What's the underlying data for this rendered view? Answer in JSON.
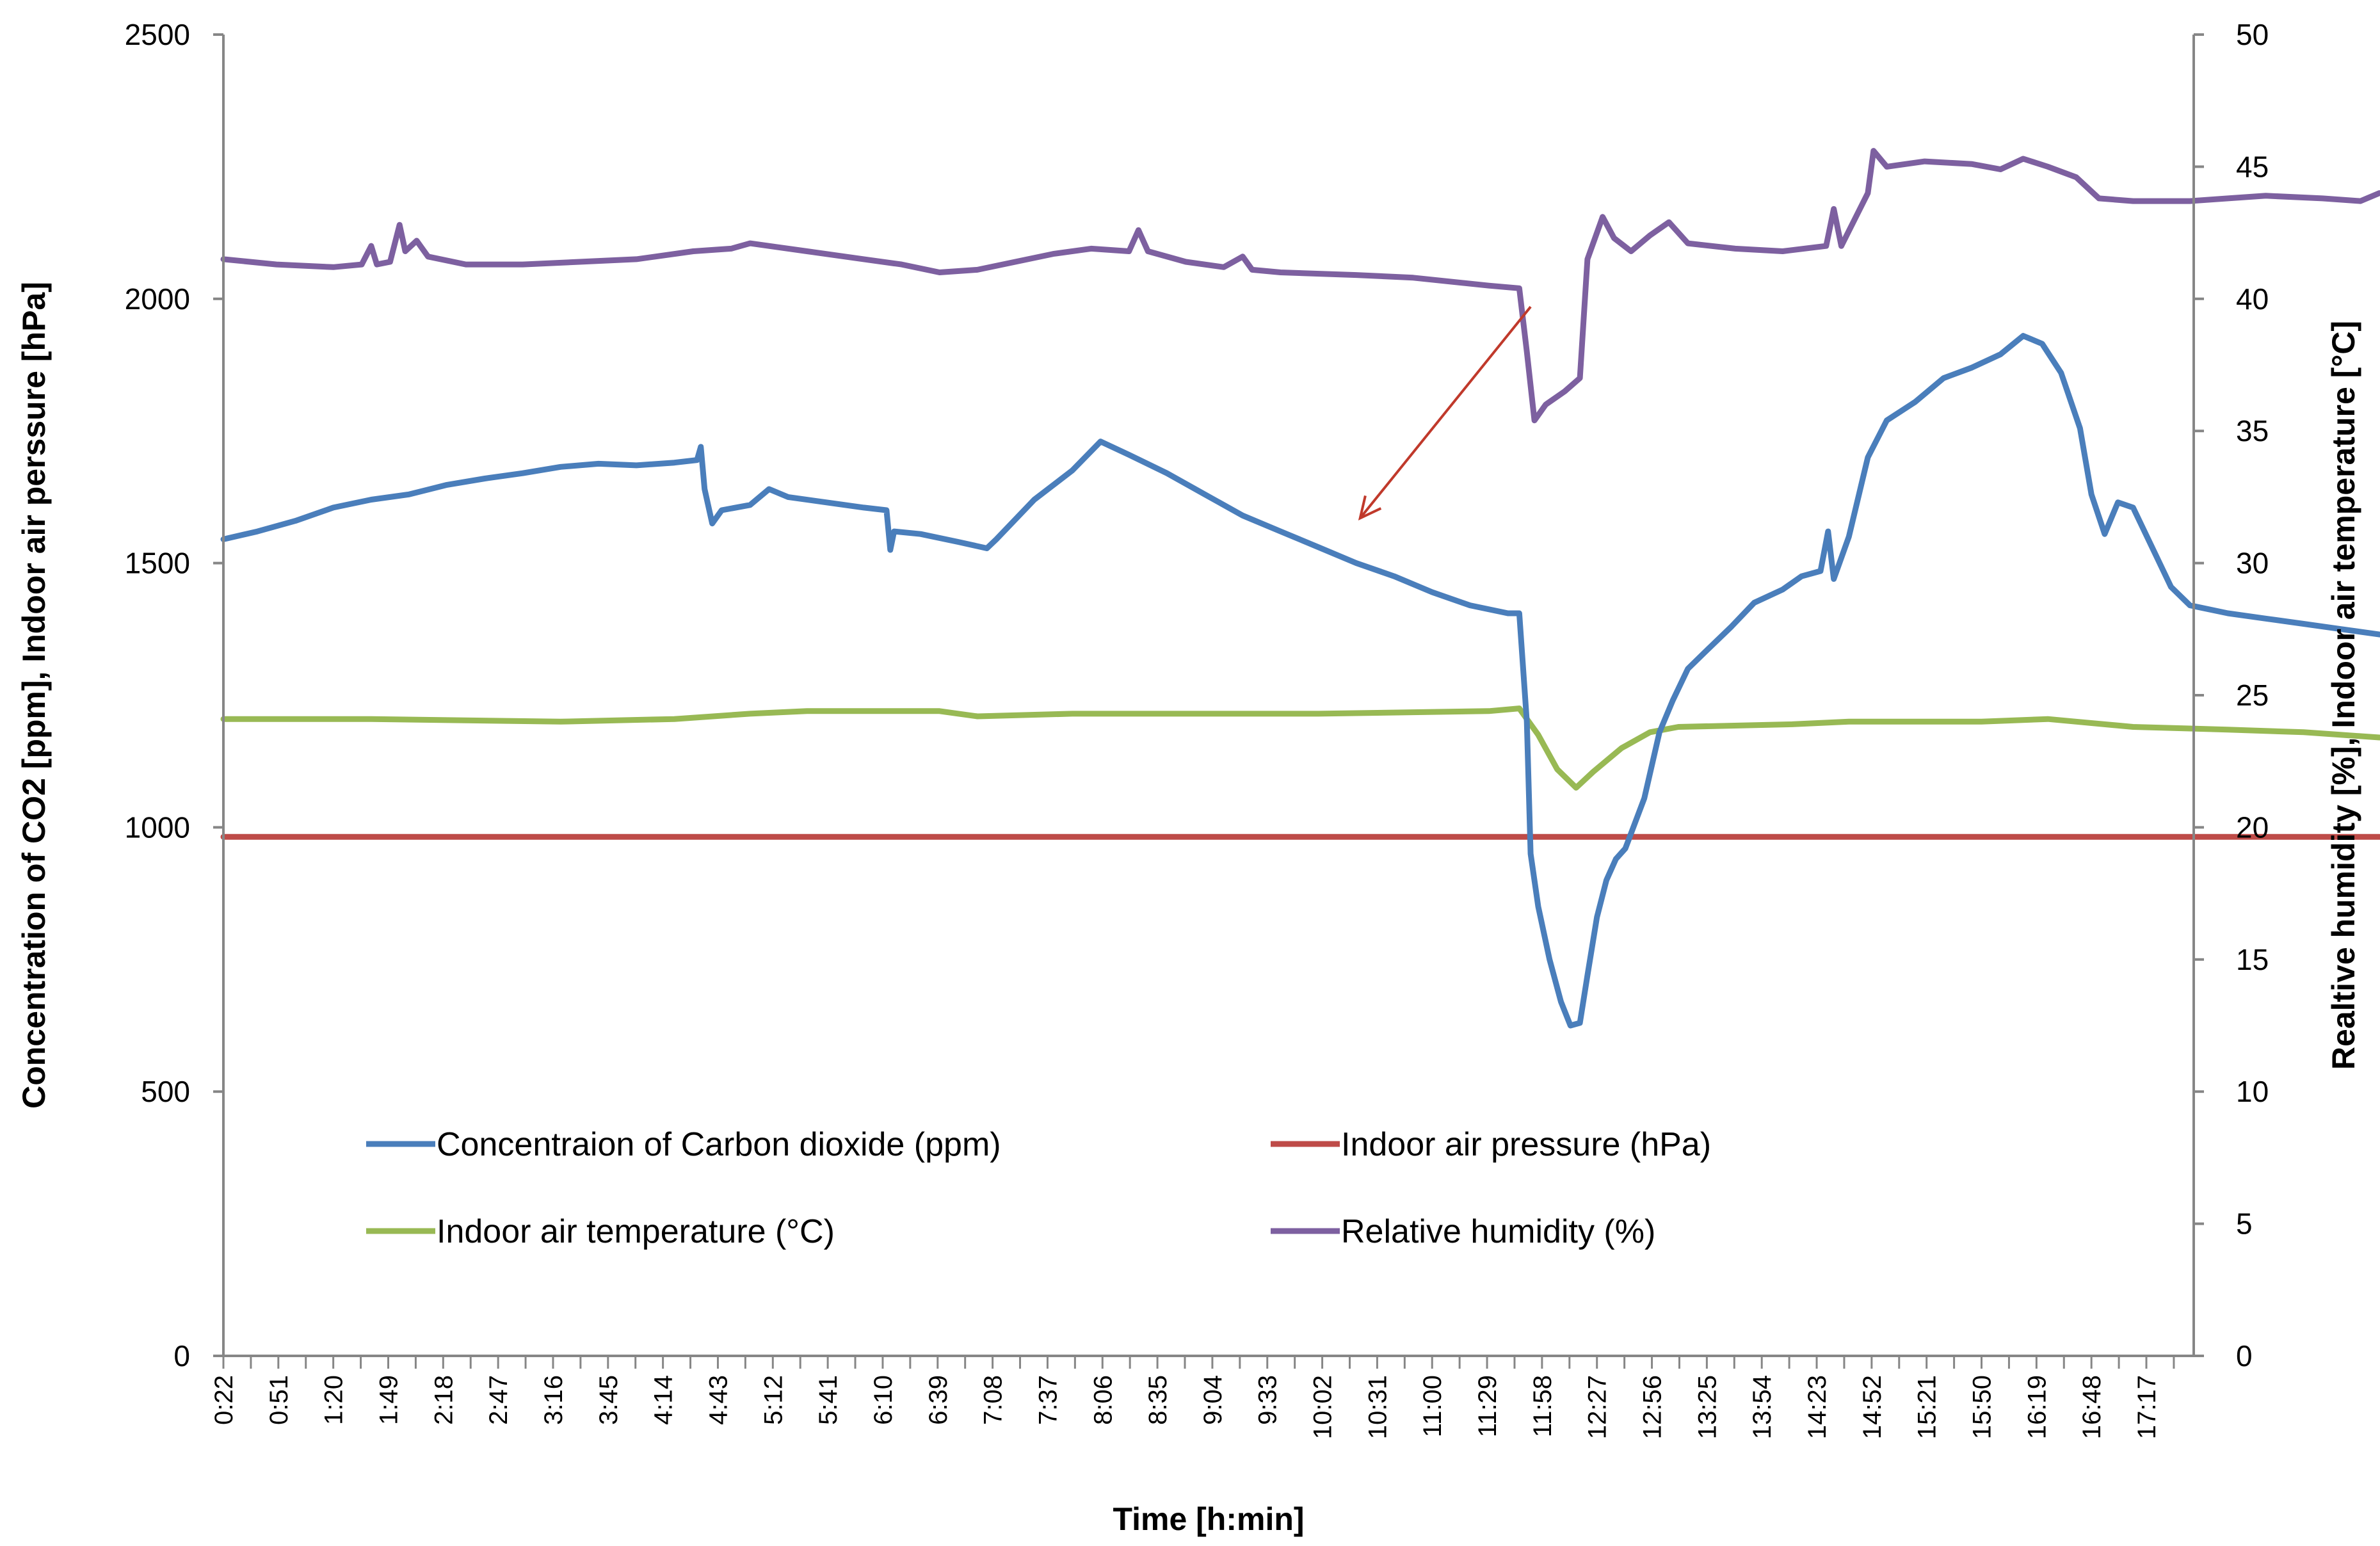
{
  "chart_data": {
    "type": "line",
    "title": "",
    "xlabel": "Time [h:min]",
    "ylabel_left": "Concentration of CO2 [ppm], Indoor air perssure  [hPa]",
    "ylabel_right": "Realtive humidity [%], Indoor air temperature [°C]",
    "ylim_left": [
      0,
      2500
    ],
    "ylim_right": [
      0,
      50
    ],
    "yticks_left": [
      "0",
      "500",
      "1000",
      "1500",
      "2000",
      "2500"
    ],
    "yticks_right": [
      "0",
      "5",
      "10",
      "15",
      "20",
      "25",
      "30",
      "35",
      "40",
      "45",
      "50"
    ],
    "x_tick_labels": [
      "0:22",
      "0:51",
      "1:20",
      "1:49",
      "2:18",
      "2:47",
      "3:16",
      "3:45",
      "4:14",
      "4:43",
      "5:12",
      "5:41",
      "6:10",
      "6:39",
      "7:08",
      "7:37",
      "8:06",
      "8:35",
      "9:04",
      "9:33",
      "10:02",
      "10:31",
      "11:00",
      "11:29",
      "11:58",
      "12:27",
      "12:56",
      "13:25",
      "13:54",
      "14:23",
      "14:52",
      "15:21",
      "15:50",
      "16:19",
      "16:48",
      "17:17"
    ],
    "x_range_minutes": [
      22,
      1062
    ],
    "grid": false,
    "legend_placement": "lower-center",
    "series": [
      {
        "name": "Concentraion of Carbon dioxide (ppm)",
        "axis": "left",
        "color": "#4a7ebb",
        "points": [
          [
            22,
            1545
          ],
          [
            40,
            1560
          ],
          [
            60,
            1580
          ],
          [
            80,
            1605
          ],
          [
            100,
            1620
          ],
          [
            120,
            1630
          ],
          [
            140,
            1648
          ],
          [
            160,
            1660
          ],
          [
            180,
            1670
          ],
          [
            200,
            1682
          ],
          [
            220,
            1688
          ],
          [
            240,
            1685
          ],
          [
            260,
            1690
          ],
          [
            272,
            1695
          ],
          [
            274,
            1720
          ],
          [
            276,
            1640
          ],
          [
            280,
            1575
          ],
          [
            285,
            1600
          ],
          [
            300,
            1610
          ],
          [
            310,
            1640
          ],
          [
            320,
            1625
          ],
          [
            340,
            1615
          ],
          [
            360,
            1605
          ],
          [
            372,
            1600
          ],
          [
            374,
            1525
          ],
          [
            376,
            1560
          ],
          [
            390,
            1555
          ],
          [
            410,
            1540
          ],
          [
            425,
            1528
          ],
          [
            430,
            1545
          ],
          [
            450,
            1620
          ],
          [
            470,
            1675
          ],
          [
            485,
            1730
          ],
          [
            500,
            1705
          ],
          [
            520,
            1670
          ],
          [
            540,
            1630
          ],
          [
            560,
            1590
          ],
          [
            580,
            1560
          ],
          [
            600,
            1530
          ],
          [
            620,
            1500
          ],
          [
            640,
            1475
          ],
          [
            660,
            1445
          ],
          [
            680,
            1420
          ],
          [
            700,
            1405
          ],
          [
            706,
            1405
          ],
          [
            710,
            1200
          ],
          [
            712,
            950
          ],
          [
            716,
            850
          ],
          [
            722,
            750
          ],
          [
            728,
            670
          ],
          [
            733,
            625
          ],
          [
            738,
            630
          ],
          [
            742,
            720
          ],
          [
            747,
            830
          ],
          [
            752,
            900
          ],
          [
            757,
            940
          ],
          [
            762,
            960
          ],
          [
            772,
            1055
          ],
          [
            780,
            1180
          ],
          [
            787,
            1240
          ],
          [
            795,
            1300
          ],
          [
            805,
            1335
          ],
          [
            818,
            1380
          ],
          [
            830,
            1425
          ],
          [
            845,
            1450
          ],
          [
            855,
            1475
          ],
          [
            865,
            1485
          ],
          [
            869,
            1560
          ],
          [
            872,
            1470
          ],
          [
            880,
            1550
          ],
          [
            890,
            1700
          ],
          [
            900,
            1770
          ],
          [
            915,
            1805
          ],
          [
            930,
            1850
          ],
          [
            945,
            1870
          ],
          [
            960,
            1895
          ],
          [
            972,
            1930
          ],
          [
            982,
            1915
          ],
          [
            992,
            1860
          ],
          [
            1002,
            1755
          ],
          [
            1008,
            1630
          ],
          [
            1015,
            1555
          ],
          [
            1022,
            1615
          ],
          [
            1030,
            1605
          ],
          [
            1040,
            1530
          ],
          [
            1050,
            1455
          ],
          [
            1060,
            1420
          ],
          [
            1080,
            1405
          ],
          [
            1100,
            1395
          ],
          [
            1120,
            1385
          ],
          [
            1140,
            1375
          ],
          [
            1160,
            1365
          ]
        ]
      },
      {
        "name": "Indoor air pressure (hPa)",
        "axis": "left",
        "color": "#be4b48",
        "points": [
          [
            22,
            982
          ],
          [
            1160,
            982
          ]
        ]
      },
      {
        "name": "Indoor air temperature (°C)",
        "axis": "right",
        "color": "#98b954",
        "points": [
          [
            22,
            24.1
          ],
          [
            100,
            24.1
          ],
          [
            200,
            24.0
          ],
          [
            260,
            24.1
          ],
          [
            300,
            24.3
          ],
          [
            330,
            24.4
          ],
          [
            400,
            24.4
          ],
          [
            420,
            24.2
          ],
          [
            470,
            24.3
          ],
          [
            600,
            24.3
          ],
          [
            690,
            24.4
          ],
          [
            706,
            24.5
          ],
          [
            716,
            23.5
          ],
          [
            726,
            22.2
          ],
          [
            736,
            21.5
          ],
          [
            745,
            22.1
          ],
          [
            760,
            23.0
          ],
          [
            775,
            23.6
          ],
          [
            790,
            23.8
          ],
          [
            850,
            23.9
          ],
          [
            880,
            24.0
          ],
          [
            950,
            24.0
          ],
          [
            985,
            24.1
          ],
          [
            1000,
            24.0
          ],
          [
            1030,
            23.8
          ],
          [
            1080,
            23.7
          ],
          [
            1120,
            23.6
          ],
          [
            1160,
            23.4
          ]
        ]
      },
      {
        "name": "Relative humidity (%)",
        "axis": "right",
        "color": "#7d60a0",
        "points": [
          [
            22,
            41.5
          ],
          [
            50,
            41.3
          ],
          [
            80,
            41.2
          ],
          [
            95,
            41.3
          ],
          [
            100,
            42.0
          ],
          [
            103,
            41.3
          ],
          [
            110,
            41.4
          ],
          [
            115,
            42.8
          ],
          [
            118,
            41.8
          ],
          [
            124,
            42.2
          ],
          [
            130,
            41.6
          ],
          [
            150,
            41.3
          ],
          [
            180,
            41.3
          ],
          [
            210,
            41.4
          ],
          [
            240,
            41.5
          ],
          [
            250,
            41.6
          ],
          [
            270,
            41.8
          ],
          [
            290,
            41.9
          ],
          [
            300,
            42.1
          ],
          [
            330,
            41.8
          ],
          [
            360,
            41.5
          ],
          [
            380,
            41.3
          ],
          [
            400,
            41.0
          ],
          [
            420,
            41.1
          ],
          [
            440,
            41.4
          ],
          [
            460,
            41.7
          ],
          [
            480,
            41.9
          ],
          [
            500,
            41.8
          ],
          [
            505,
            42.6
          ],
          [
            510,
            41.8
          ],
          [
            530,
            41.4
          ],
          [
            550,
            41.2
          ],
          [
            560,
            41.6
          ],
          [
            565,
            41.1
          ],
          [
            580,
            41.0
          ],
          [
            620,
            40.9
          ],
          [
            650,
            40.8
          ],
          [
            690,
            40.5
          ],
          [
            706,
            40.4
          ],
          [
            710,
            38.0
          ],
          [
            714,
            35.4
          ],
          [
            720,
            36.0
          ],
          [
            730,
            36.5
          ],
          [
            738,
            37.0
          ],
          [
            742,
            41.5
          ],
          [
            750,
            43.1
          ],
          [
            756,
            42.3
          ],
          [
            765,
            41.8
          ],
          [
            775,
            42.4
          ],
          [
            785,
            42.9
          ],
          [
            795,
            42.1
          ],
          [
            820,
            41.9
          ],
          [
            845,
            41.8
          ],
          [
            868,
            42.0
          ],
          [
            872,
            43.4
          ],
          [
            876,
            42.0
          ],
          [
            890,
            44.0
          ],
          [
            893,
            45.6
          ],
          [
            900,
            45.0
          ],
          [
            920,
            45.2
          ],
          [
            945,
            45.1
          ],
          [
            960,
            44.9
          ],
          [
            972,
            45.3
          ],
          [
            985,
            45.0
          ],
          [
            1000,
            44.6
          ],
          [
            1012,
            43.8
          ],
          [
            1030,
            43.7
          ],
          [
            1060,
            43.7
          ],
          [
            1080,
            43.8
          ],
          [
            1100,
            43.9
          ],
          [
            1130,
            43.8
          ],
          [
            1150,
            43.7
          ],
          [
            1160,
            44.0
          ]
        ]
      }
    ],
    "annotations": [
      {
        "type": "arrow",
        "color": "#c0392b",
        "from": [
          712,
          39.7
        ],
        "to": [
          622,
          31.7
        ]
      }
    ]
  }
}
